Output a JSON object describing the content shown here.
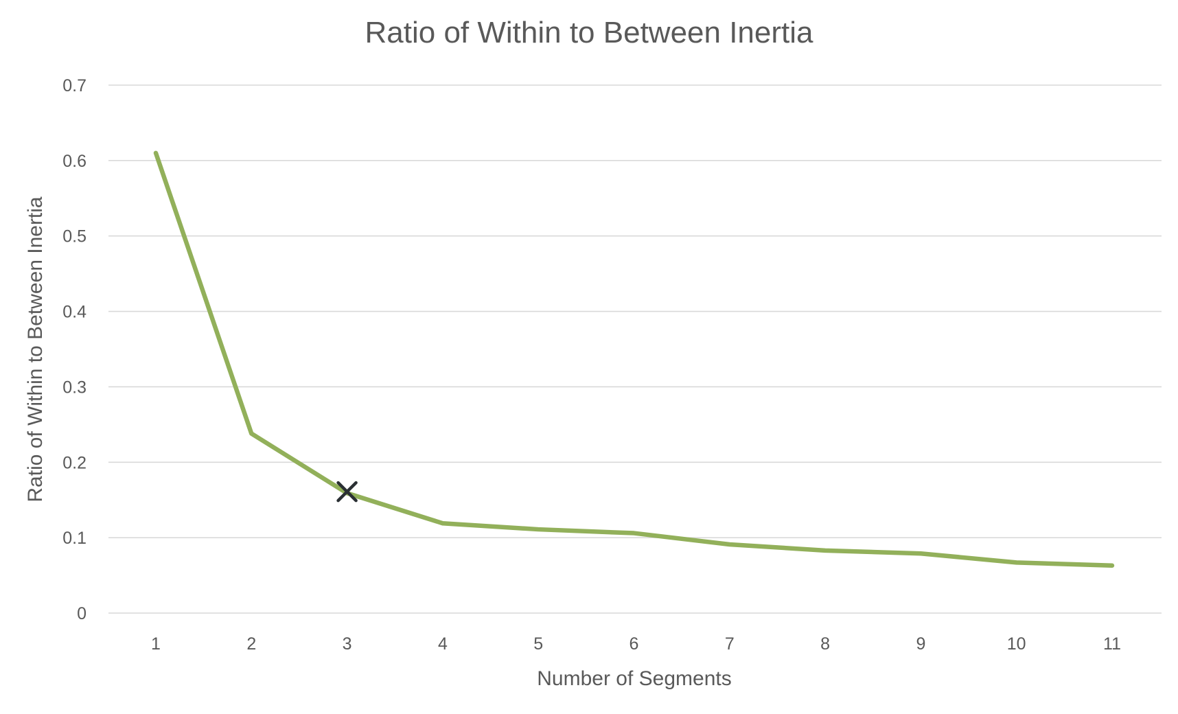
{
  "chart_data": {
    "type": "line",
    "title": "Ratio of Within to Between Inertia",
    "xlabel": "Number of Segments",
    "ylabel": "Ratio of Within to Between Inertia",
    "categories": [
      "1",
      "2",
      "3",
      "4",
      "5",
      "6",
      "7",
      "8",
      "9",
      "10",
      "11"
    ],
    "y_ticks": [
      "0",
      "0.1",
      "0.2",
      "0.3",
      "0.4",
      "0.5",
      "0.6",
      "0.7"
    ],
    "ylim": [
      0,
      0.7
    ],
    "grid": true,
    "legend": "none",
    "series": [
      {
        "values": [
          0.61,
          0.238,
          0.159,
          0.119,
          0.111,
          0.106,
          0.091,
          0.083,
          0.079,
          0.067,
          0.063
        ],
        "color": "#92b05a"
      }
    ],
    "annotations": [
      {
        "type": "x-marker",
        "x": "3",
        "y": 0.161,
        "color": "#2a2f33"
      }
    ]
  }
}
